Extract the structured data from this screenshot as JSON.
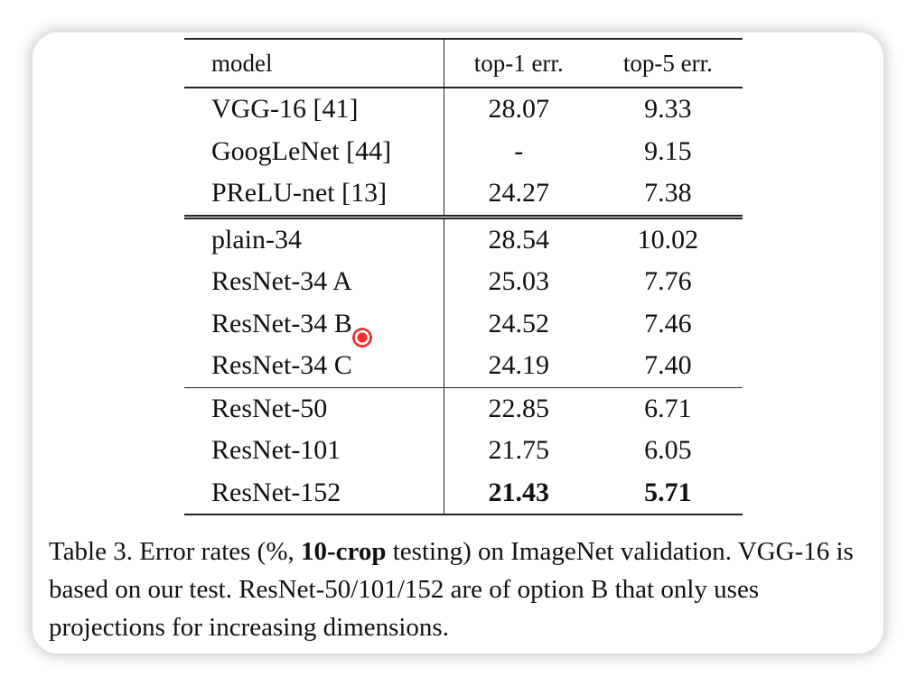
{
  "table": {
    "headers": [
      "model",
      "top-1 err.",
      "top-5 err."
    ],
    "groups": [
      [
        {
          "model": "VGG-16 [41]",
          "top1": "28.07",
          "top5": "9.33"
        },
        {
          "model": "GoogLeNet [44]",
          "top1": "-",
          "top5": "9.15"
        },
        {
          "model": "PReLU-net [13]",
          "top1": "24.27",
          "top5": "7.38"
        }
      ],
      [
        {
          "model": "plain-34",
          "top1": "28.54",
          "top5": "10.02"
        },
        {
          "model": "ResNet-34 A",
          "top1": "25.03",
          "top5": "7.76"
        },
        {
          "model": "ResNet-34 B",
          "top1": "24.52",
          "top5": "7.46"
        },
        {
          "model": "ResNet-34 C",
          "top1": "24.19",
          "top5": "7.40"
        }
      ],
      [
        {
          "model": "ResNet-50",
          "top1": "22.85",
          "top5": "6.71"
        },
        {
          "model": "ResNet-101",
          "top1": "21.75",
          "top5": "6.05"
        },
        {
          "model": "ResNet-152",
          "top1": "21.43",
          "top5": "5.71"
        }
      ]
    ]
  },
  "caption": {
    "part1": "Table 3. Error rates (%, ",
    "bold": "10-crop",
    "part2": " testing) on ImageNet validation. VGG-16 is based on our test. ResNet-50/101/152 are of option B that only uses projections for increasing dimensions."
  },
  "colors": {
    "cursor": "#ff1e1e",
    "text": "#111111",
    "rule": "#222222"
  }
}
